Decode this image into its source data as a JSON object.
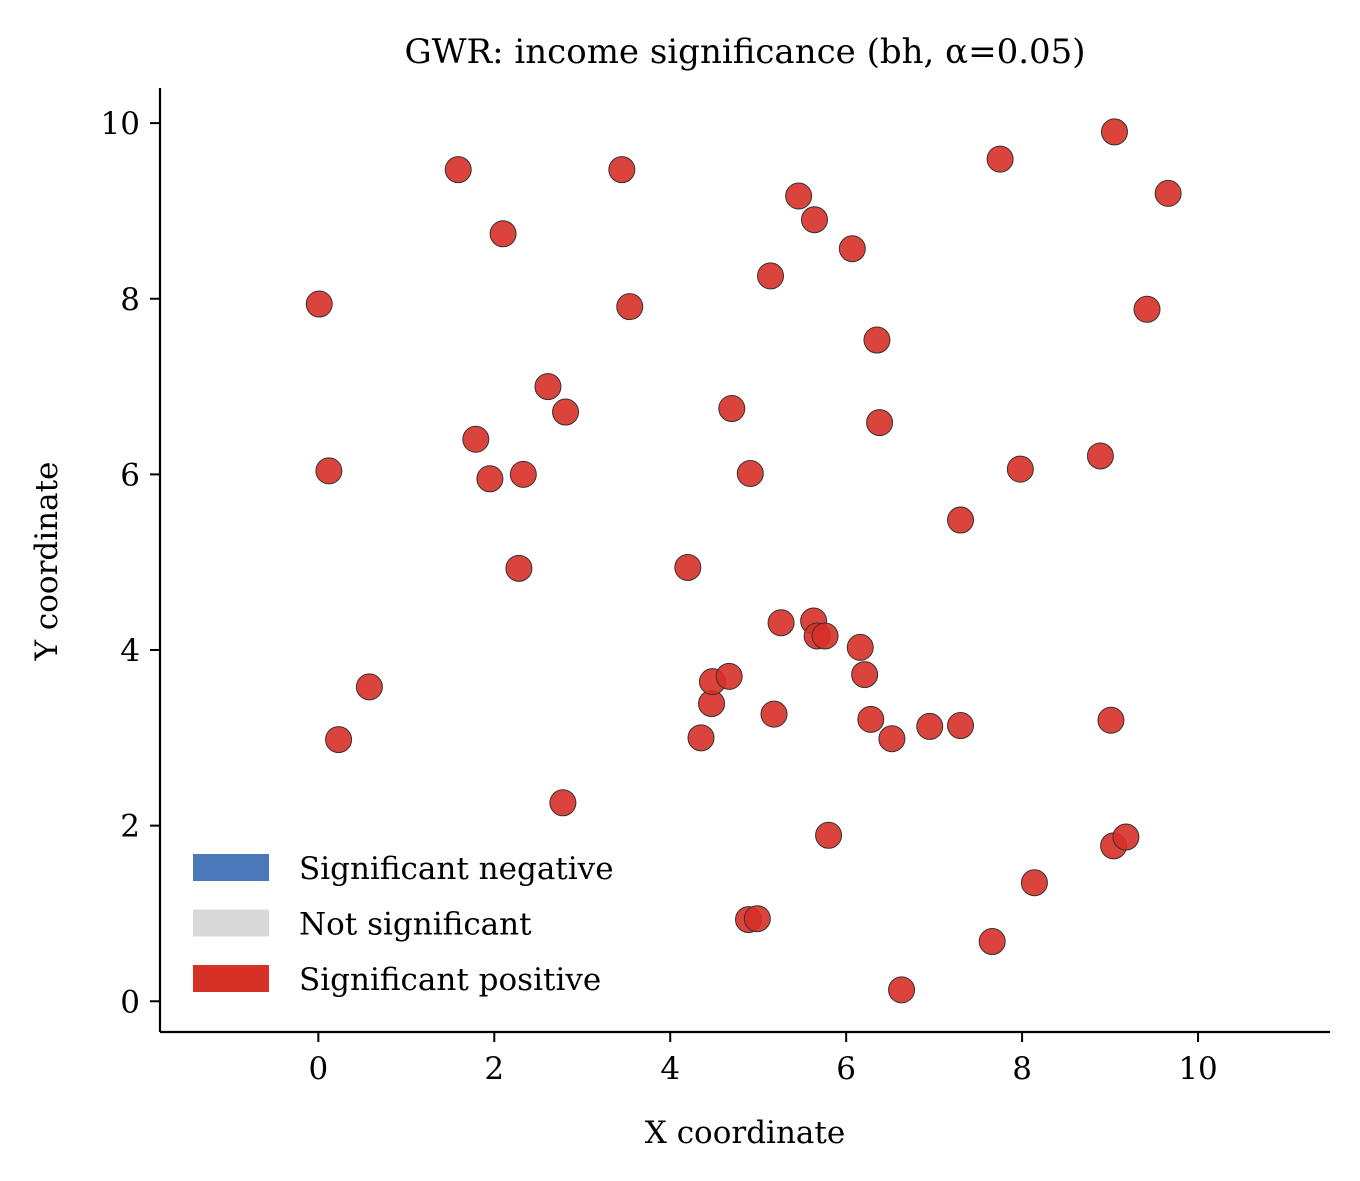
{
  "chart_data": {
    "type": "scatter",
    "title": "GWR: income significance (bh, α=0.05)",
    "xlabel": "X coordinate",
    "ylabel": "Y coordinate",
    "xlim": [
      -1.8,
      11.5
    ],
    "ylim": [
      -0.35,
      10.4
    ],
    "xticks": [
      "0",
      "2",
      "4",
      "6",
      "8",
      "10"
    ],
    "yticks": [
      "0",
      "2",
      "4",
      "6",
      "8",
      "10"
    ],
    "grid": false,
    "legend_position": "lower-left",
    "legend": [
      {
        "label": "Significant negative",
        "color": "#4a78b8"
      },
      {
        "label": "Not significant",
        "color": "#d9d9d9"
      },
      {
        "label": "Significant positive",
        "color": "#d73027"
      }
    ],
    "series": [
      {
        "category": "Significant positive",
        "color": "#d73027",
        "points": [
          [
            0.01,
            7.94
          ],
          [
            0.12,
            6.04
          ],
          [
            0.23,
            2.98
          ],
          [
            0.58,
            3.58
          ],
          [
            1.59,
            9.47
          ],
          [
            1.79,
            6.4
          ],
          [
            1.95,
            5.95
          ],
          [
            2.1,
            8.74
          ],
          [
            2.28,
            4.93
          ],
          [
            2.33,
            6.0
          ],
          [
            2.61,
            7.0
          ],
          [
            2.78,
            2.26
          ],
          [
            2.81,
            6.71
          ],
          [
            3.45,
            9.47
          ],
          [
            3.54,
            7.91
          ],
          [
            4.2,
            4.94
          ],
          [
            4.35,
            3.0
          ],
          [
            4.47,
            3.39
          ],
          [
            4.48,
            3.64
          ],
          [
            4.67,
            3.7
          ],
          [
            4.7,
            6.75
          ],
          [
            4.89,
            0.93
          ],
          [
            4.91,
            6.01
          ],
          [
            4.99,
            0.94
          ],
          [
            5.14,
            8.26
          ],
          [
            5.18,
            3.27
          ],
          [
            5.26,
            4.31
          ],
          [
            5.46,
            9.17
          ],
          [
            5.63,
            4.33
          ],
          [
            5.64,
            8.9
          ],
          [
            5.67,
            4.16
          ],
          [
            5.76,
            4.16
          ],
          [
            5.8,
            1.89
          ],
          [
            6.07,
            8.57
          ],
          [
            6.16,
            4.03
          ],
          [
            6.21,
            3.72
          ],
          [
            6.28,
            3.21
          ],
          [
            6.35,
            7.53
          ],
          [
            6.38,
            6.59
          ],
          [
            6.52,
            2.99
          ],
          [
            6.63,
            0.13
          ],
          [
            6.95,
            3.13
          ],
          [
            7.3,
            5.48
          ],
          [
            7.3,
            3.14
          ],
          [
            7.66,
            0.68
          ],
          [
            7.75,
            9.59
          ],
          [
            7.98,
            6.06
          ],
          [
            8.14,
            1.35
          ],
          [
            8.89,
            6.21
          ],
          [
            9.01,
            3.2
          ],
          [
            9.04,
            1.77
          ],
          [
            9.05,
            9.9
          ],
          [
            9.18,
            1.87
          ],
          [
            9.42,
            7.88
          ],
          [
            9.66,
            9.2
          ]
        ]
      }
    ]
  }
}
